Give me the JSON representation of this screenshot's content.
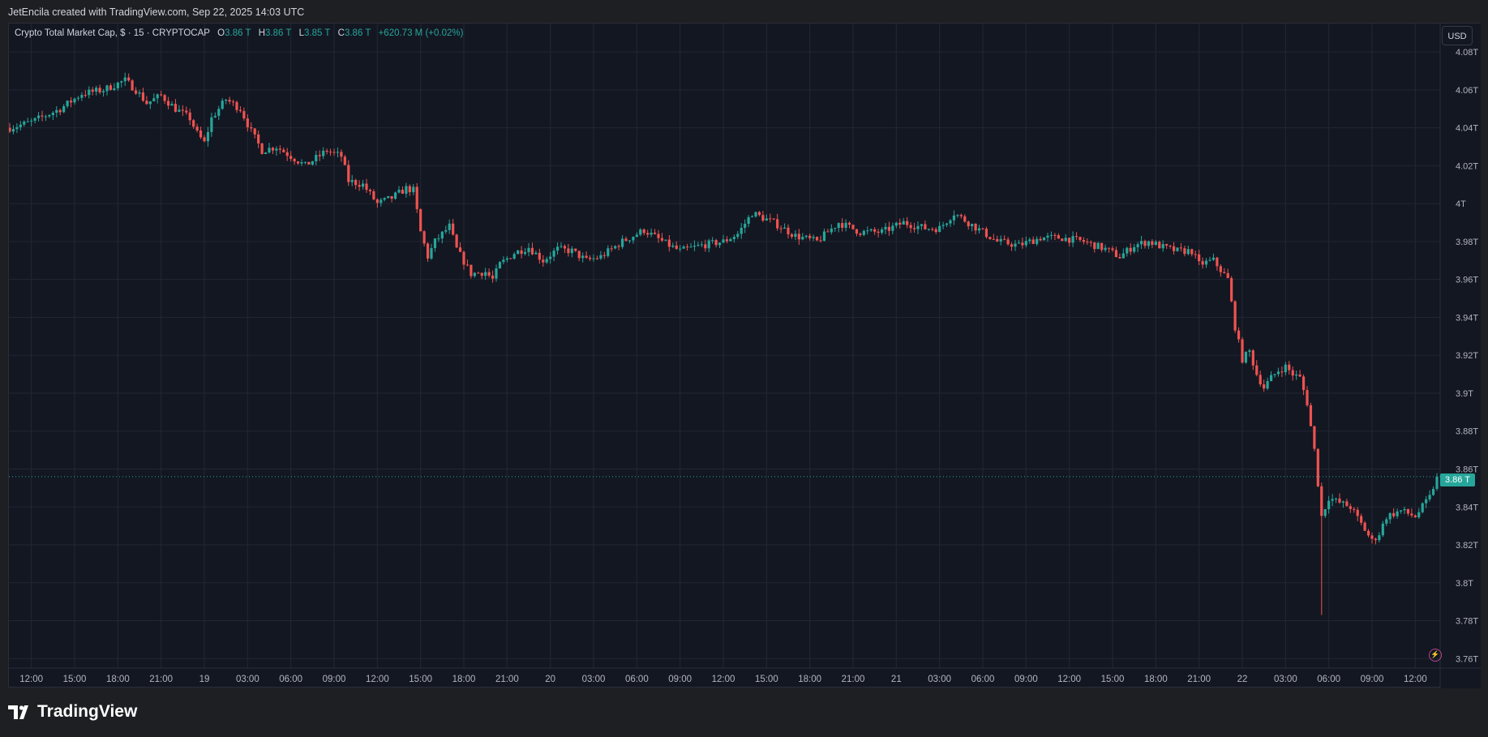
{
  "header": {
    "attribution": "JetEncila created with TradingView.com, Sep 22, 2025 14:03 UTC"
  },
  "legend": {
    "symbol": "Crypto Total Market Cap, $ · 15 · CRYPTOCAP",
    "o_label": "O",
    "o_value": "3.86 T",
    "h_label": "H",
    "h_value": "3.86 T",
    "l_label": "L",
    "l_value": "3.85 T",
    "c_label": "C",
    "c_value": "3.86 T",
    "change": "+620.73 M (+0.02%)"
  },
  "currency_button": "USD",
  "last_price_label": "3.86 T",
  "brand": {
    "name": "TradingView"
  },
  "colors": {
    "up": "#26a69a",
    "down": "#ef5350",
    "background": "#131722",
    "grid": "#232733"
  },
  "chart_data": {
    "type": "candlestick",
    "title": "Crypto Total Market Cap, $ · 15 · CRYPTOCAP",
    "y_unit": "T USD",
    "ylim": [
      3.755,
      4.095
    ],
    "y_ticks": [
      "4.08T",
      "4.06T",
      "4.04T",
      "4.02T",
      "4T",
      "3.98T",
      "3.96T",
      "3.94T",
      "3.92T",
      "3.9T",
      "3.88T",
      "3.86T",
      "3.84T",
      "3.82T",
      "3.8T",
      "3.78T",
      "3.76T"
    ],
    "y_tick_values": [
      4.08,
      4.06,
      4.04,
      4.02,
      4.0,
      3.98,
      3.96,
      3.94,
      3.92,
      3.9,
      3.88,
      3.86,
      3.84,
      3.82,
      3.8,
      3.78,
      3.76
    ],
    "x_ticks": [
      "12:00",
      "15:00",
      "18:00",
      "21:00",
      "19",
      "03:00",
      "06:00",
      "09:00",
      "12:00",
      "15:00",
      "18:00",
      "21:00",
      "20",
      "03:00",
      "06:00",
      "09:00",
      "12:00",
      "15:00",
      "18:00",
      "21:00",
      "21",
      "03:00",
      "06:00",
      "09:00",
      "12:00",
      "15:00",
      "18:00",
      "21:00",
      "22",
      "03:00",
      "06:00",
      "09:00",
      "12:00"
    ],
    "x_tick_index": [
      6,
      18,
      30,
      42,
      54,
      66,
      78,
      90,
      102,
      114,
      126,
      138,
      150,
      162,
      174,
      186,
      198,
      210,
      222,
      234,
      246,
      258,
      270,
      282,
      294,
      306,
      318,
      330,
      342,
      354,
      366,
      378,
      390
    ],
    "candle_count": 397,
    "last_price": 3.856,
    "path_keypoints": [
      [
        0,
        4.04
      ],
      [
        6,
        4.043
      ],
      [
        14,
        4.05
      ],
      [
        20,
        4.058
      ],
      [
        26,
        4.06
      ],
      [
        32,
        4.065
      ],
      [
        35,
        4.06
      ],
      [
        38,
        4.053
      ],
      [
        42,
        4.057
      ],
      [
        46,
        4.05
      ],
      [
        50,
        4.045
      ],
      [
        52,
        4.037
      ],
      [
        54,
        4.032
      ],
      [
        56,
        4.045
      ],
      [
        60,
        4.055
      ],
      [
        64,
        4.05
      ],
      [
        67,
        4.038
      ],
      [
        70,
        4.028
      ],
      [
        74,
        4.03
      ],
      [
        78,
        4.025
      ],
      [
        82,
        4.02
      ],
      [
        88,
        4.028
      ],
      [
        92,
        4.025
      ],
      [
        94,
        4.012
      ],
      [
        98,
        4.01
      ],
      [
        102,
        4.0
      ],
      [
        106,
        4.003
      ],
      [
        110,
        4.008
      ],
      [
        112,
        4.007
      ],
      [
        114,
        3.985
      ],
      [
        116,
        3.972
      ],
      [
        118,
        3.98
      ],
      [
        122,
        3.988
      ],
      [
        124,
        3.976
      ],
      [
        128,
        3.963
      ],
      [
        132,
        3.964
      ],
      [
        134,
        3.96
      ],
      [
        136,
        3.968
      ],
      [
        140,
        3.974
      ],
      [
        144,
        3.977
      ],
      [
        148,
        3.97
      ],
      [
        152,
        3.976
      ],
      [
        156,
        3.975
      ],
      [
        160,
        3.97
      ],
      [
        164,
        3.972
      ],
      [
        170,
        3.98
      ],
      [
        176,
        3.986
      ],
      [
        182,
        3.979
      ],
      [
        186,
        3.975
      ],
      [
        192,
        3.978
      ],
      [
        198,
        3.98
      ],
      [
        202,
        3.984
      ],
      [
        206,
        3.995
      ],
      [
        212,
        3.99
      ],
      [
        218,
        3.983
      ],
      [
        224,
        3.98
      ],
      [
        230,
        3.99
      ],
      [
        236,
        3.985
      ],
      [
        242,
        3.985
      ],
      [
        248,
        3.99
      ],
      [
        254,
        3.987
      ],
      [
        258,
        3.987
      ],
      [
        262,
        3.995
      ],
      [
        266,
        3.99
      ],
      [
        270,
        3.985
      ],
      [
        274,
        3.98
      ],
      [
        280,
        3.978
      ],
      [
        286,
        3.982
      ],
      [
        292,
        3.982
      ],
      [
        298,
        3.98
      ],
      [
        304,
        3.976
      ],
      [
        308,
        3.972
      ],
      [
        312,
        3.978
      ],
      [
        316,
        3.98
      ],
      [
        320,
        3.977
      ],
      [
        324,
        3.975
      ],
      [
        328,
        3.975
      ],
      [
        330,
        3.968
      ],
      [
        334,
        3.97
      ],
      [
        336,
        3.965
      ],
      [
        338,
        3.96
      ],
      [
        340,
        3.935
      ],
      [
        342,
        3.918
      ],
      [
        344,
        3.922
      ],
      [
        346,
        3.91
      ],
      [
        348,
        3.903
      ],
      [
        350,
        3.908
      ],
      [
        352,
        3.912
      ],
      [
        354,
        3.914
      ],
      [
        356,
        3.91
      ],
      [
        358,
        3.908
      ],
      [
        360,
        3.895
      ],
      [
        362,
        3.87
      ],
      [
        364,
        3.835
      ],
      [
        366,
        3.845
      ],
      [
        368,
        3.843
      ],
      [
        372,
        3.84
      ],
      [
        376,
        3.828
      ],
      [
        378,
        3.822
      ],
      [
        380,
        3.826
      ],
      [
        382,
        3.835
      ],
      [
        386,
        3.838
      ],
      [
        390,
        3.835
      ],
      [
        392,
        3.84
      ],
      [
        394,
        3.845
      ],
      [
        396,
        3.856
      ]
    ]
  }
}
